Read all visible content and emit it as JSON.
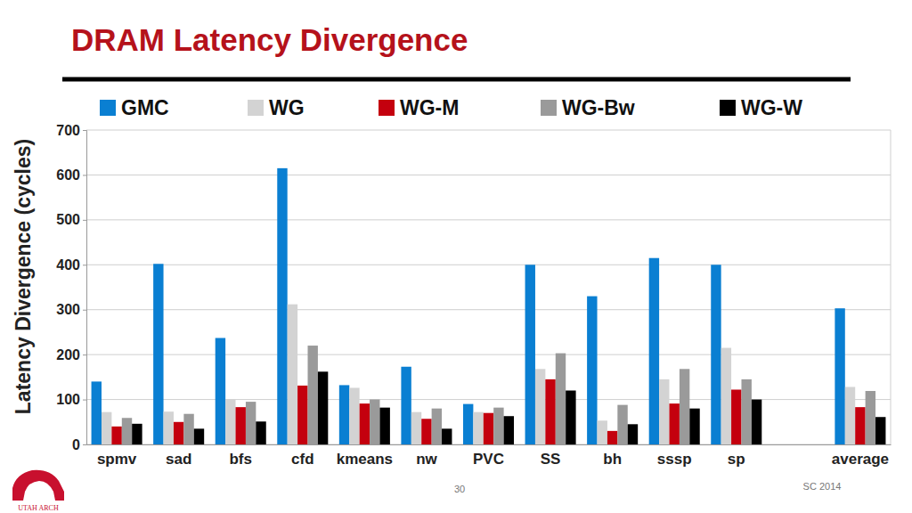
{
  "chart_data": {
    "type": "bar",
    "title": "DRAM Latency Divergence",
    "y_label": "Latency Divergence (cycles)",
    "categories": [
      "spmv",
      "sad",
      "bfs",
      "cfd",
      "kmeans",
      "nw",
      "PVC",
      "SS",
      "bh",
      "sssp",
      "sp",
      null,
      "average"
    ],
    "series": [
      {
        "name": "GMC",
        "color": "#0a7fd2",
        "values": [
          140,
          402,
          237,
          615,
          132,
          173,
          90,
          400,
          330,
          415,
          400,
          null,
          303
        ]
      },
      {
        "name": "WG",
        "color": "#d3d3d3",
        "values": [
          72,
          73,
          100,
          312,
          126,
          72,
          72,
          168,
          53,
          145,
          215,
          null,
          128
        ]
      },
      {
        "name": "WG-M",
        "color": "#c4000e",
        "values": [
          40,
          50,
          83,
          131,
          91,
          57,
          70,
          145,
          30,
          91,
          122,
          null,
          83
        ]
      },
      {
        "name": "WG-Bw",
        "color": "#9a9a9a",
        "values": [
          59,
          68,
          95,
          220,
          100,
          80,
          82,
          203,
          88,
          168,
          145,
          null,
          119
        ]
      },
      {
        "name": "WG-W",
        "color": "#000000",
        "values": [
          46,
          35,
          51,
          162,
          82,
          35,
          63,
          120,
          45,
          80,
          100,
          null,
          61
        ]
      }
    ],
    "ylim": [
      0,
      700
    ],
    "yticks": [
      0,
      100,
      200,
      300,
      400,
      500,
      600,
      700
    ],
    "grid": true,
    "legend": "top"
  },
  "slide": {
    "page_number": "30",
    "venue": "SC 2014",
    "logo_text": "UTAH ARCH"
  }
}
